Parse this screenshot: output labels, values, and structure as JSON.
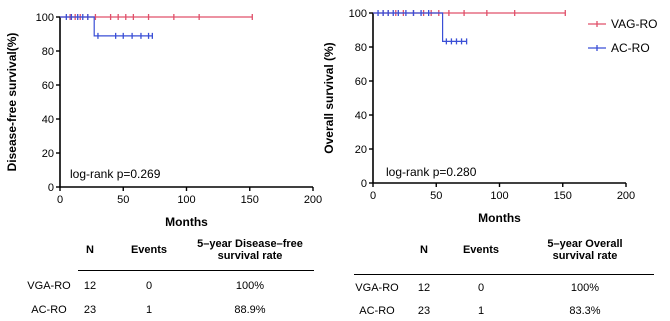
{
  "colors": {
    "vag": "#e0506a",
    "ac": "#3a4fd6",
    "axis": "#000000"
  },
  "chart_data": [
    {
      "type": "line",
      "name": "disease-free",
      "ylabel": "Disease-free survival(%)",
      "xlabel": "Months",
      "xlim": [
        0,
        200
      ],
      "ylim": [
        0,
        100
      ],
      "xticks": [
        0,
        50,
        100,
        150,
        200
      ],
      "yticks": [
        0,
        20,
        40,
        60,
        80,
        100
      ],
      "annotation": "log-rank p=0.269",
      "series": [
        {
          "key": "vag",
          "step": [
            [
              0,
              100
            ],
            [
              152,
              100
            ]
          ],
          "censor": [
            [
              8,
              100
            ],
            [
              12,
              100
            ],
            [
              16,
              100
            ],
            [
              22,
              100
            ],
            [
              28,
              100
            ],
            [
              40,
              100
            ],
            [
              46,
              100
            ],
            [
              52,
              100
            ],
            [
              58,
              100
            ],
            [
              70,
              100
            ],
            [
              90,
              100
            ],
            [
              110,
              100
            ],
            [
              152,
              100
            ]
          ]
        },
        {
          "key": "ac",
          "step": [
            [
              0,
              100
            ],
            [
              27,
              100
            ],
            [
              27,
              88.9
            ],
            [
              73,
              88.9
            ]
          ],
          "censor": [
            [
              5,
              100
            ],
            [
              9,
              100
            ],
            [
              14,
              100
            ],
            [
              18,
              100
            ],
            [
              22,
              100
            ],
            [
              30,
              88.9
            ],
            [
              44,
              88.9
            ],
            [
              50,
              88.9
            ],
            [
              57,
              88.9
            ],
            [
              64,
              88.9
            ],
            [
              70,
              88.9
            ],
            [
              73,
              88.9
            ]
          ]
        }
      ]
    },
    {
      "type": "line",
      "name": "overall",
      "ylabel": "Overall survival  (%)",
      "xlabel": "Months",
      "xlim": [
        0,
        200
      ],
      "ylim": [
        0,
        100
      ],
      "xticks": [
        0,
        50,
        100,
        150,
        200
      ],
      "yticks": [
        0,
        20,
        40,
        60,
        80,
        100
      ],
      "annotation": "log-rank p=0.280",
      "legend": [
        "VAG-RO",
        "AC-RO"
      ],
      "series": [
        {
          "key": "vag",
          "step": [
            [
              0,
              100
            ],
            [
              152,
              100
            ]
          ],
          "censor": [
            [
              8,
              100
            ],
            [
              12,
              100
            ],
            [
              18,
              100
            ],
            [
              24,
              100
            ],
            [
              32,
              100
            ],
            [
              40,
              100
            ],
            [
              46,
              100
            ],
            [
              52,
              100
            ],
            [
              60,
              100
            ],
            [
              72,
              100
            ],
            [
              90,
              100
            ],
            [
              112,
              100
            ],
            [
              152,
              100
            ]
          ]
        },
        {
          "key": "ac",
          "step": [
            [
              0,
              100
            ],
            [
              55,
              100
            ],
            [
              55,
              83.3
            ],
            [
              74,
              83.3
            ]
          ],
          "censor": [
            [
              4,
              100
            ],
            [
              8,
              100
            ],
            [
              12,
              100
            ],
            [
              16,
              100
            ],
            [
              20,
              100
            ],
            [
              26,
              100
            ],
            [
              32,
              100
            ],
            [
              38,
              100
            ],
            [
              44,
              100
            ],
            [
              58,
              83.3
            ],
            [
              62,
              83.3
            ],
            [
              66,
              83.3
            ],
            [
              70,
              83.3
            ],
            [
              74,
              83.3
            ]
          ]
        }
      ]
    }
  ],
  "tables": [
    {
      "headers": [
        "N",
        "Events",
        "5–year Disease–free\nsurvival rate"
      ],
      "rows": [
        {
          "label": "VGA-RO",
          "n": "12",
          "events": "0",
          "rate": "100%"
        },
        {
          "label": "AC-RO",
          "n": "23",
          "events": "1",
          "rate": "88.9%"
        }
      ]
    },
    {
      "headers": [
        "N",
        "Events",
        "5–year Overall\nsurvival rate"
      ],
      "rows": [
        {
          "label": "VGA-RO",
          "n": "12",
          "events": "0",
          "rate": "100%"
        },
        {
          "label": "AC-RO",
          "n": "23",
          "events": "1",
          "rate": "83.3%"
        }
      ]
    }
  ]
}
